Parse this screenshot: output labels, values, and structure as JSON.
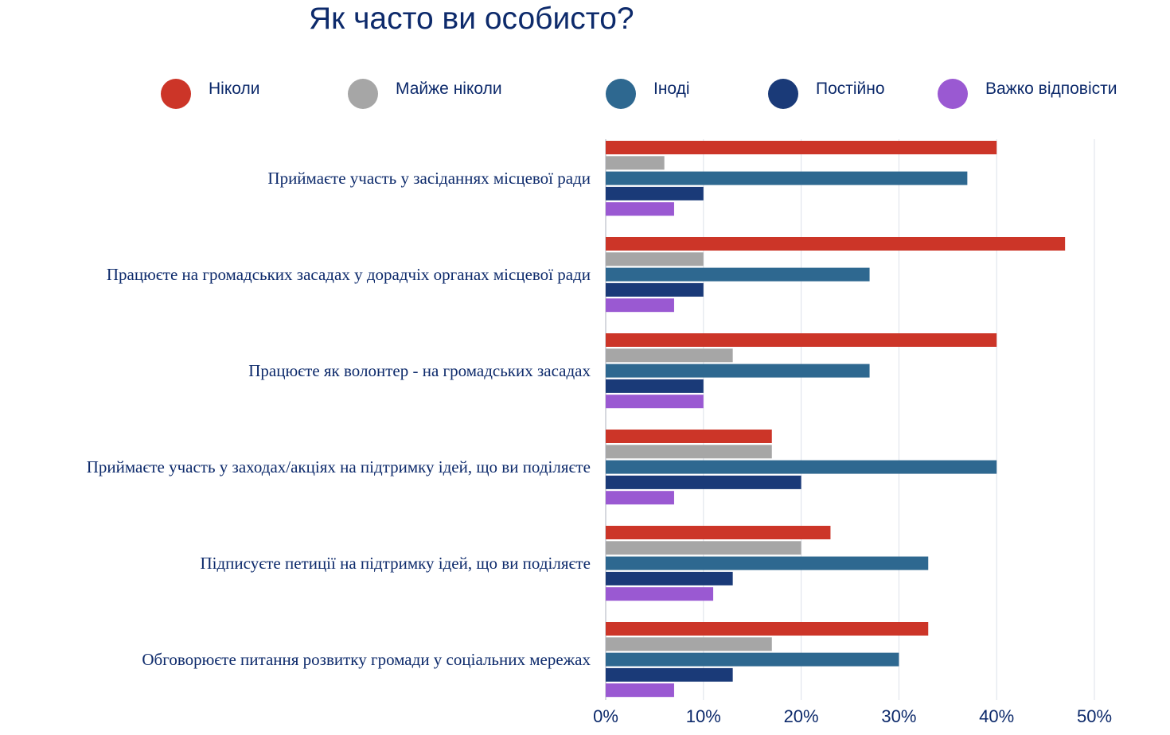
{
  "chart_data": {
    "type": "bar",
    "orientation": "horizontal",
    "title": "Як часто ви особисто?",
    "categories": [
      "Приймаєте участь у засіданнях місцевої ради",
      "Працюєте на громадських засадах у дорадчіх органах місцевої ради",
      "Працюєте як волонтер - на громадських засадах",
      "Приймаєте участь у заходах/акціях на підтримку ідей, що ви поділяєте",
      "Підписуєте петиції на підтримку ідей, що ви поділяєте",
      "Обговорюєте питання розвитку громади у соціальних мережах"
    ],
    "series": [
      {
        "name": "Ніколи",
        "color": "#cc3528",
        "values": [
          40,
          47,
          40,
          17,
          23,
          33
        ]
      },
      {
        "name": "Майже ніколи",
        "color": "#a6a6a6",
        "values": [
          6,
          10,
          13,
          17,
          20,
          17
        ]
      },
      {
        "name": "Іноді",
        "color": "#2e6890",
        "values": [
          37,
          27,
          27,
          40,
          33,
          30
        ]
      },
      {
        "name": "Постійно",
        "color": "#1a3a78",
        "values": [
          10,
          10,
          10,
          20,
          13,
          13
        ]
      },
      {
        "name": "Важко відповісти",
        "color": "#9a59d2",
        "values": [
          7,
          7,
          10,
          7,
          11,
          7
        ]
      }
    ],
    "x_ticks": [
      "0%",
      "10%",
      "20%",
      "30%",
      "40%",
      "50%"
    ],
    "xlim": [
      0,
      50
    ],
    "xlabel": "",
    "ylabel": "",
    "grid": true,
    "legend_position": "top"
  }
}
